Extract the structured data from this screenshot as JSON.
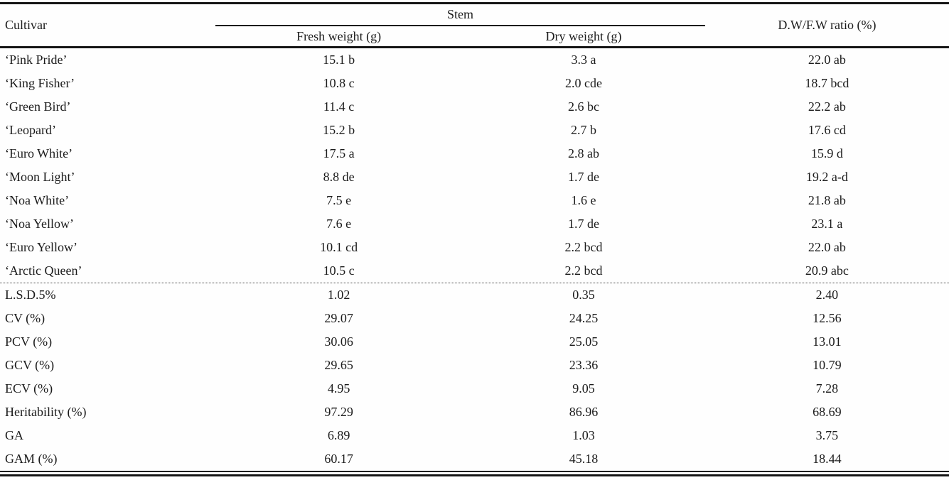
{
  "colors": {
    "text": "#1b1b1b",
    "rule": "#151515",
    "dotted_separator": "#4a4a4a",
    "background": "#fefefe"
  },
  "table": {
    "columns": {
      "cultivar": "Cultivar",
      "stem_group": "Stem",
      "fresh_weight": "Fresh weight (g)",
      "dry_weight": "Dry weight (g)",
      "ratio": "D.W/F.W ratio (%)"
    },
    "rows": [
      {
        "cultivar": "‘Pink Pride’",
        "fresh_weight": "15.1 b",
        "dry_weight": "3.3 a",
        "ratio": "22.0 ab"
      },
      {
        "cultivar": "‘King Fisher’",
        "fresh_weight": "10.8 c",
        "dry_weight": "2.0 cde",
        "ratio": "18.7 bcd"
      },
      {
        "cultivar": "‘Green Bird’",
        "fresh_weight": "11.4 c",
        "dry_weight": "2.6 bc",
        "ratio": "22.2 ab"
      },
      {
        "cultivar": "‘Leopard’",
        "fresh_weight": "15.2 b",
        "dry_weight": "2.7 b",
        "ratio": "17.6 cd"
      },
      {
        "cultivar": "‘Euro White’",
        "fresh_weight": "17.5 a",
        "dry_weight": "2.8 ab",
        "ratio": "15.9 d"
      },
      {
        "cultivar": "‘Moon Light’",
        "fresh_weight": "8.8 de",
        "dry_weight": "1.7 de",
        "ratio": "19.2 a-d"
      },
      {
        "cultivar": "‘Noa White’",
        "fresh_weight": "7.5 e",
        "dry_weight": "1.6 e",
        "ratio": "21.8 ab"
      },
      {
        "cultivar": "‘Noa Yellow’",
        "fresh_weight": "7.6 e",
        "dry_weight": "1.7 de",
        "ratio": "23.1 a"
      },
      {
        "cultivar": "‘Euro Yellow’",
        "fresh_weight": "10.1 cd",
        "dry_weight": "2.2 bcd",
        "ratio": "22.0 ab"
      },
      {
        "cultivar": "‘Arctic Queen’",
        "fresh_weight": "10.5 c",
        "dry_weight": "2.2 bcd",
        "ratio": "20.9 abc"
      }
    ],
    "stats": [
      {
        "label": "L.S.D.5%",
        "fresh_weight": "1.02",
        "dry_weight": "0.35",
        "ratio": "2.40"
      },
      {
        "label": "CV (%)",
        "fresh_weight": "29.07",
        "dry_weight": "24.25",
        "ratio": "12.56"
      },
      {
        "label": "PCV (%)",
        "fresh_weight": "30.06",
        "dry_weight": "25.05",
        "ratio": "13.01"
      },
      {
        "label": "GCV (%)",
        "fresh_weight": "29.65",
        "dry_weight": "23.36",
        "ratio": "10.79"
      },
      {
        "label": "ECV (%)",
        "fresh_weight": "4.95",
        "dry_weight": "9.05",
        "ratio": "7.28"
      },
      {
        "label": "Heritability (%)",
        "fresh_weight": "97.29",
        "dry_weight": "86.96",
        "ratio": "68.69"
      },
      {
        "label": "GA",
        "fresh_weight": "6.89",
        "dry_weight": "1.03",
        "ratio": "3.75"
      },
      {
        "label": "GAM (%)",
        "fresh_weight": "60.17",
        "dry_weight": "45.18",
        "ratio": "18.44"
      }
    ]
  }
}
